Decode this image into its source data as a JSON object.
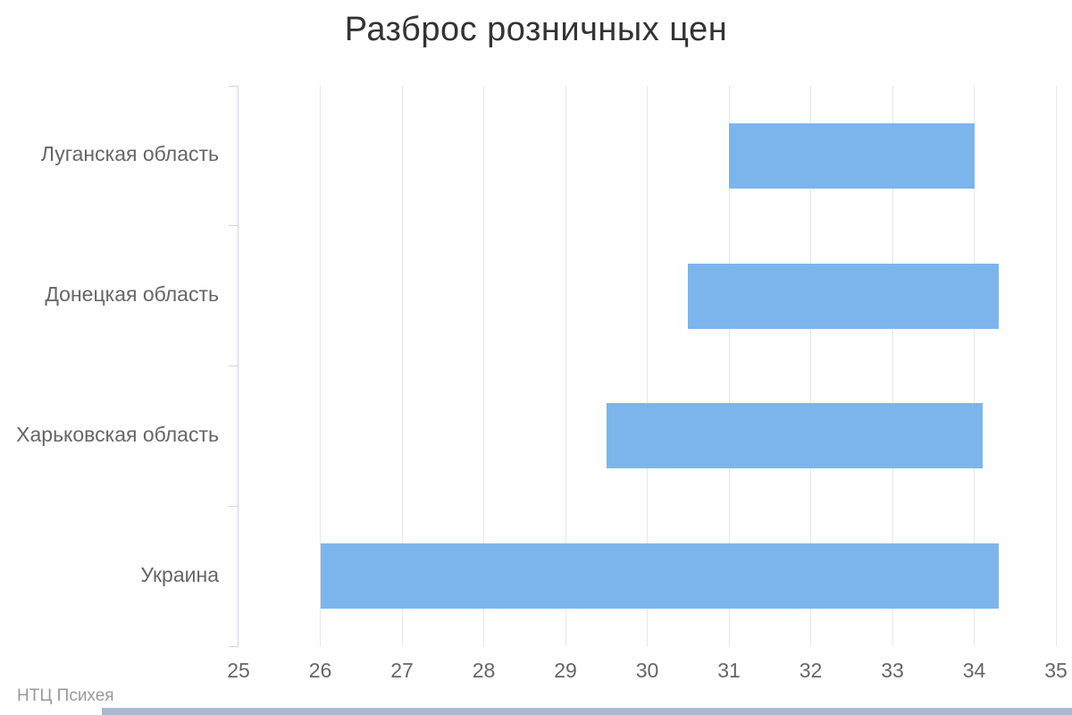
{
  "header": {
    "title": "Разброс розничных цен"
  },
  "credits": {
    "label": "НТЦ Психея"
  },
  "colors": {
    "background": "#ffffff",
    "bar": "#7cb5ec",
    "grid": "#e6e6e6",
    "axis": "#ccd6eb",
    "title_text": "#333333",
    "label_text": "#666666",
    "credits_text": "#999999",
    "bottom_strip": "#abb9cf"
  },
  "chart_data": {
    "type": "bar",
    "subtype": "horizontal-range-bar",
    "title": "Разброс розничных цен",
    "categories": [
      "Луганская область",
      "Донецкая область",
      "Харьковская область",
      "Украина"
    ],
    "series": [
      {
        "name": "Разброс розничных цен",
        "ranges": [
          {
            "category": "Луганская область",
            "low": 31.0,
            "high": 34.0
          },
          {
            "category": "Донецкая область",
            "low": 30.5,
            "high": 34.3
          },
          {
            "category": "Харьковская область",
            "low": 29.5,
            "high": 34.1
          },
          {
            "category": "Украина",
            "low": 26.0,
            "high": 34.3
          }
        ]
      }
    ],
    "xlabel": "",
    "ylabel": "",
    "xlim": [
      25,
      35
    ],
    "xticks": [
      25,
      26,
      27,
      28,
      29,
      30,
      31,
      32,
      33,
      34,
      35
    ],
    "grid": true,
    "legend": false,
    "credits": "НТЦ Психея"
  }
}
